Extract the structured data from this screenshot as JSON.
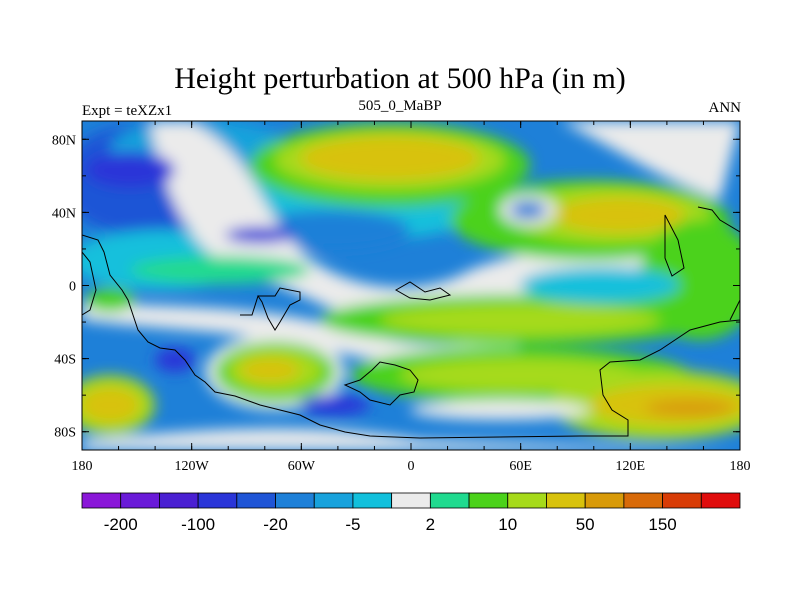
{
  "title": "Height perturbation at 500 hPa (in m)",
  "left_subtitle": "Expt = teXZx1",
  "center_subtitle": "505_0_MaBP",
  "right_subtitle": "ANN",
  "x_ticks": [
    {
      "lon": -180,
      "label": "180"
    },
    {
      "lon": -120,
      "label": "120W"
    },
    {
      "lon": -60,
      "label": "60W"
    },
    {
      "lon": 0,
      "label": "0"
    },
    {
      "lon": 60,
      "label": "60E"
    },
    {
      "lon": 120,
      "label": "120E"
    },
    {
      "lon": 180,
      "label": "180"
    }
  ],
  "y_ticks": [
    {
      "lat": 80,
      "label": "80N"
    },
    {
      "lat": 40,
      "label": "40N"
    },
    {
      "lat": 0,
      "label": "0"
    },
    {
      "lat": -40,
      "label": "40S"
    },
    {
      "lat": -80,
      "label": "80S"
    }
  ],
  "colorbar": {
    "colors": [
      "#8A17D8",
      "#6A1AD8",
      "#4A20D2",
      "#2A35D8",
      "#1F55D6",
      "#1E80D8",
      "#18A2DC",
      "#12C0DC",
      "#EBEBEB",
      "#20DA8F",
      "#4BD21A",
      "#A6DA1A",
      "#D8C20C",
      "#D89A08",
      "#D86A08",
      "#D83C06",
      "#E00C0C"
    ],
    "labels": [
      {
        "boundary": 1,
        "text": "-200"
      },
      {
        "boundary": 3,
        "text": "-100"
      },
      {
        "boundary": 5,
        "text": "-20"
      },
      {
        "boundary": 7,
        "text": "-5"
      },
      {
        "boundary": 9,
        "text": "2"
      },
      {
        "boundary": 11,
        "text": "10"
      },
      {
        "boundary": 13,
        "text": "50"
      },
      {
        "boundary": 15,
        "text": "150"
      }
    ]
  }
}
